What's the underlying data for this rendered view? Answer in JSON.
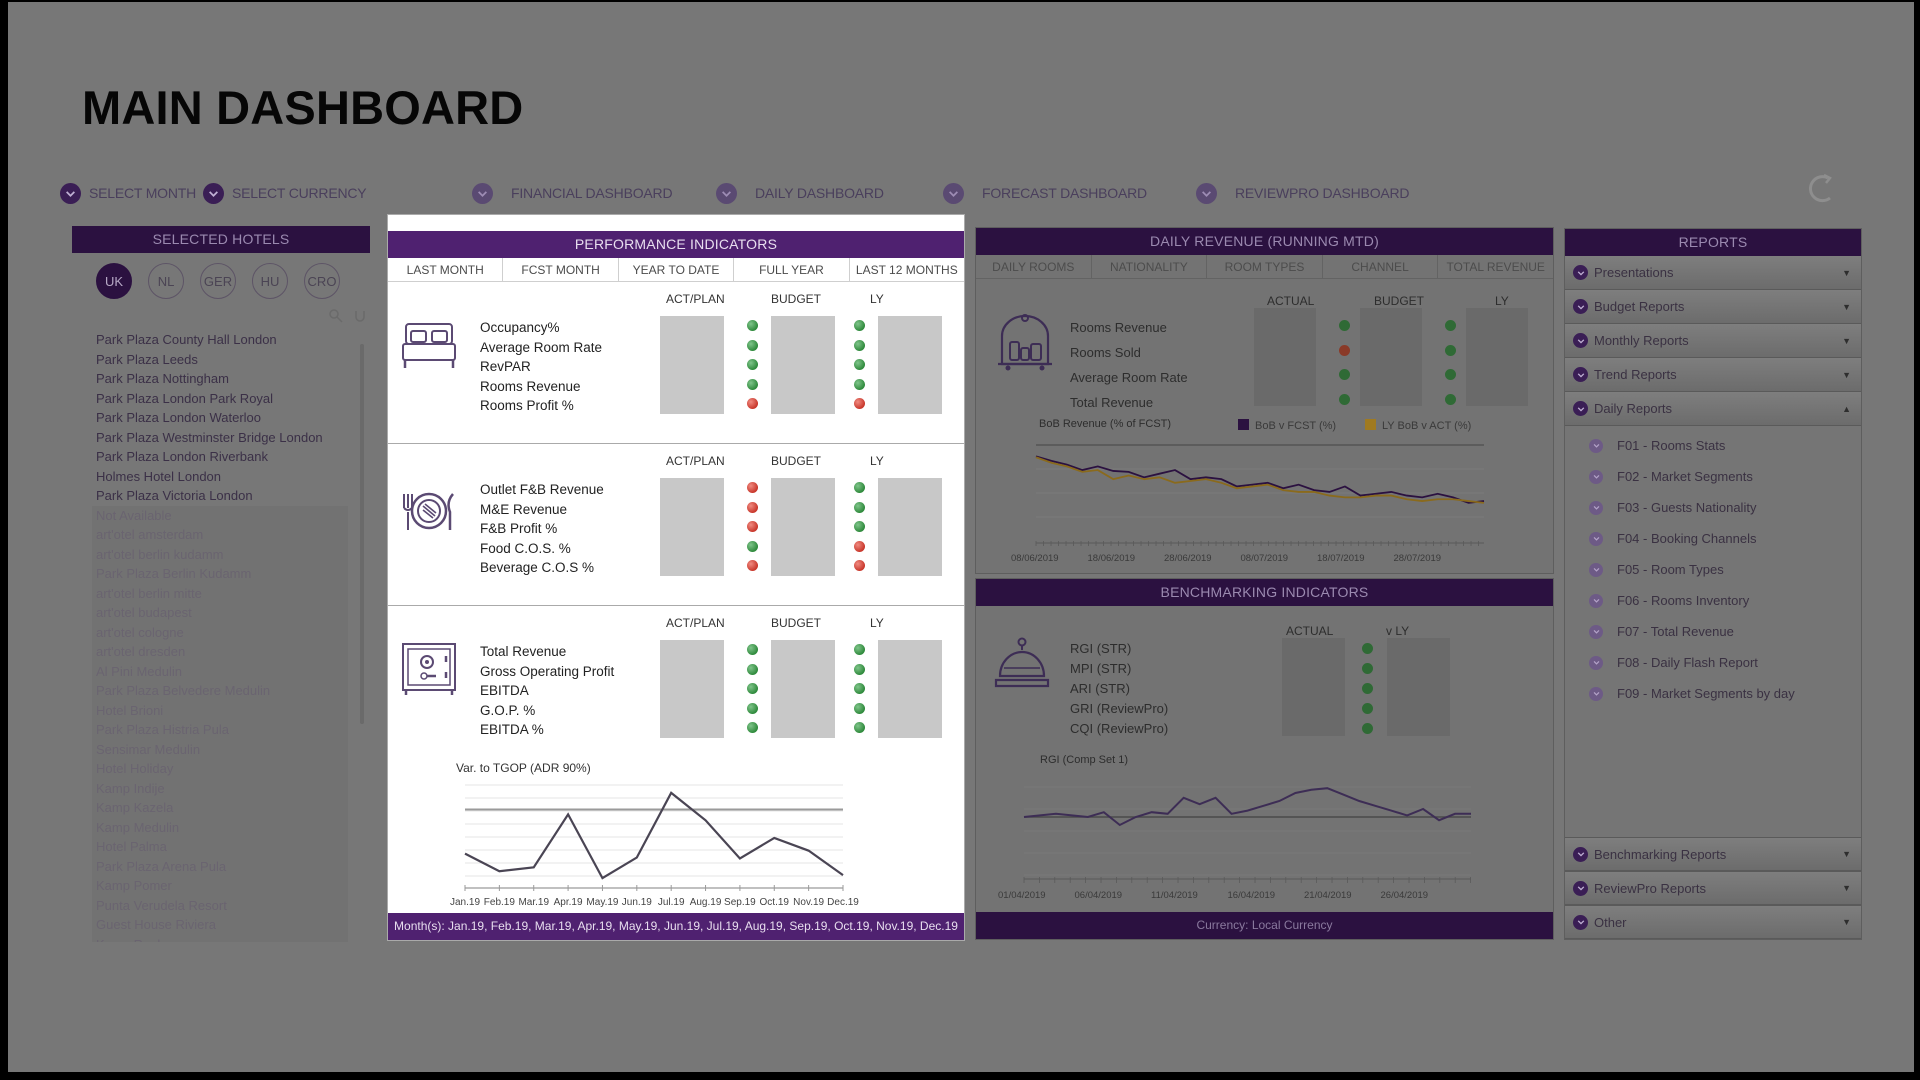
{
  "page": {
    "title": "MAIN DASHBOARD"
  },
  "topnav": {
    "select_month": "SELECT MONTH",
    "select_currency": "SELECT CURRENCY",
    "financial": "FINANCIAL DASHBOARD",
    "daily": "DAILY DASHBOARD",
    "forecast": "FORECAST DASHBOARD",
    "reviewpro": "REVIEWPRO DASHBOARD"
  },
  "hotels": {
    "header": "SELECTED HOTELS",
    "countries": [
      "UK",
      "NL",
      "GER",
      "HU",
      "CRO"
    ],
    "active_country": "UK",
    "available": [
      "Park Plaza County Hall London",
      "Park Plaza Leeds",
      "Park Plaza Nottingham",
      "Park Plaza London Park Royal",
      "Park Plaza London Waterloo",
      "Park Plaza Westminster Bridge London",
      "Park Plaza London Riverbank",
      "Holmes Hotel London",
      "Park Plaza Victoria London"
    ],
    "unavailable": [
      "Not Available",
      "art'otel amsterdam",
      "art'otel berlin kudamm",
      "Park Plaza Berlin Kudamm",
      "art'otel berlin mitte",
      "art'otel budapest",
      "art'otel cologne",
      "art'otel dresden",
      "Al Pini Medulin",
      "Park Plaza Belvedere Medulin",
      "Hotel Brioni",
      "Park Plaza Histria Pula",
      "Sensimar Medulin",
      "Hotel Holiday",
      "Kamp Indije",
      "Kamp Kazela",
      "Kamp Medulin",
      "Hotel Palma",
      "Park Plaza Arena Pula",
      "Kamp Pomer",
      "Punta Verudela Resort",
      "Guest House Riviera",
      "Kamp Runke"
    ]
  },
  "performance": {
    "header": "PERFORMANCE INDICATORS",
    "tabs": [
      "LAST MONTH",
      "FCST MONTH",
      "YEAR TO DATE",
      "FULL YEAR",
      "LAST 12 MONTHS"
    ],
    "columns": [
      "ACT/PLAN",
      "BUDGET",
      "LY"
    ],
    "sections": [
      {
        "icon": "bed-icon",
        "labels": [
          "Occupancy%",
          "Average Room Rate",
          "RevPAR",
          "Rooms Revenue",
          "Rooms Profit %"
        ],
        "budget_status": [
          "green",
          "green",
          "green",
          "green",
          "red"
        ],
        "ly_status": [
          "green",
          "green",
          "green",
          "green",
          "red"
        ]
      },
      {
        "icon": "dining-plate-icon",
        "labels": [
          "Outlet F&B Revenue",
          "M&E Revenue",
          "F&B Profit %",
          "Food C.O.S. %",
          "Beverage C.O.S %"
        ],
        "budget_status": [
          "red",
          "red",
          "red",
          "green",
          "red"
        ],
        "ly_status": [
          "green",
          "green",
          "green",
          "red",
          "red"
        ]
      },
      {
        "icon": "safe-icon",
        "labels": [
          "Total Revenue",
          "Gross Operating Profit",
          "EBITDA",
          "G.O.P. %",
          "EBITDA %"
        ],
        "budget_status": [
          "green",
          "green",
          "green",
          "green",
          "green"
        ],
        "ly_status": [
          "green",
          "green",
          "green",
          "green",
          "green"
        ]
      }
    ],
    "chart_title": "Var. to TGOP (ADR 90%)",
    "footer": "Month(s): Jan.19, Feb.19, Mar.19, Apr.19, May.19, Jun.19, Jul.19, Aug.19, Sep.19, Oct.19, Nov.19, Dec.19"
  },
  "daily_revenue": {
    "header": "DAILY REVENUE (RUNNING MTD)",
    "tabs": [
      "DAILY ROOMS",
      "NATIONALITY",
      "ROOM TYPES",
      "CHANNEL",
      "TOTAL REVENUE"
    ],
    "columns": [
      "ACTUAL",
      "BUDGET",
      "LY"
    ],
    "labels": [
      "Rooms Revenue",
      "Rooms Sold",
      "Average Room Rate",
      "Total Revenue"
    ],
    "budget_status": [
      "green",
      "red",
      "green",
      "green"
    ],
    "ly_status": [
      "green",
      "green",
      "green",
      "green"
    ],
    "chart_title": "BoB Revenue (% of FCST)",
    "legend": [
      {
        "label": "BoB v FCST (%)",
        "color": "#2b1140"
      },
      {
        "label": "LY BoB v ACT (%)",
        "color": "#b8860b"
      }
    ],
    "x_ticks": [
      "08/06/2019",
      "18/06/2019",
      "28/06/2019",
      "08/07/2019",
      "18/07/2019",
      "28/07/2019"
    ]
  },
  "benchmarking": {
    "header": "BENCHMARKING INDICATORS",
    "columns": [
      "ACTUAL",
      "v LY"
    ],
    "labels": [
      "RGI (STR)",
      "MPI (STR)",
      "ARI (STR)",
      "GRI (ReviewPro)",
      "CQI (ReviewPro)"
    ],
    "status": [
      "green",
      "green",
      "green",
      "green",
      "green"
    ],
    "chart_title": "RGI (Comp Set 1)",
    "x_ticks": [
      "01/04/2019",
      "06/04/2019",
      "11/04/2019",
      "16/04/2019",
      "21/04/2019",
      "26/04/2019"
    ],
    "footer": "Currency: Local Currency"
  },
  "reports": {
    "header": "REPORTS",
    "groups": [
      "Presentations",
      "Budget Reports",
      "Monthly Reports",
      "Trend Reports",
      "Daily Reports"
    ],
    "expanded_group": "Daily Reports",
    "daily_items": [
      "F01 - Rooms Stats",
      "F02 - Market Segments",
      "F03 - Guests Nationality",
      "F04 - Booking Channels",
      "F05 - Room Types",
      "F06 - Rooms Inventory",
      "F07 - Total Revenue",
      "F08 - Daily Flash Report",
      "F09 - Market Segments by day"
    ],
    "bottom_groups": [
      "Benchmarking Reports",
      "ReviewPro Reports",
      "Other"
    ]
  },
  "chart_data": [
    {
      "type": "line",
      "title": "Var. to TGOP (ADR 90%)",
      "categories": [
        "Jan.19",
        "Feb.19",
        "Mar.19",
        "Apr.19",
        "May.19",
        "Jun.19",
        "Jul.19",
        "Aug.19",
        "Sep.19",
        "Oct.19",
        "Nov.19",
        "Dec.19"
      ],
      "series": [
        {
          "name": "Var. to TGOP",
          "values": [
            30,
            12,
            16,
            70,
            5,
            26,
            92,
            64,
            25,
            46,
            33,
            8
          ]
        }
      ],
      "reference_line": 75,
      "ylim": [
        0,
        100
      ],
      "xlabel": "",
      "ylabel": "",
      "grid": true
    },
    {
      "type": "line",
      "title": "BoB Revenue (% of FCST)",
      "x_ticks": [
        "08/06/2019",
        "18/06/2019",
        "28/06/2019",
        "08/07/2019",
        "18/07/2019",
        "28/07/2019"
      ],
      "series": [
        {
          "name": "BoB v FCST (%)",
          "values": [
            95,
            90,
            86,
            80,
            84,
            79,
            78,
            72,
            76,
            80,
            70,
            72,
            70,
            62,
            64,
            66,
            60,
            64,
            58,
            56,
            62,
            52,
            54,
            56,
            52,
            50,
            54,
            50,
            44,
            46
          ]
        },
        {
          "name": "LY BoB v ACT (%)",
          "values": [
            94,
            88,
            84,
            78,
            80,
            70,
            74,
            70,
            72,
            66,
            68,
            70,
            66,
            60,
            62,
            64,
            58,
            56,
            56,
            52,
            50,
            50,
            52,
            52,
            48,
            46,
            48,
            48,
            46,
            44
          ]
        }
      ],
      "ylim": [
        0,
        100
      ],
      "grid": true
    },
    {
      "type": "line",
      "title": "RGI (Comp Set 1)",
      "x_ticks": [
        "01/04/2019",
        "06/04/2019",
        "11/04/2019",
        "16/04/2019",
        "21/04/2019",
        "26/04/2019"
      ],
      "series": [
        {
          "name": "RGI",
          "values": [
            50,
            51,
            52,
            51,
            50,
            53,
            45,
            50,
            53,
            52,
            62,
            58,
            62,
            52,
            54,
            57,
            60,
            65,
            67,
            68,
            64,
            60,
            57,
            54,
            51,
            55,
            48,
            52,
            52
          ]
        }
      ],
      "reference_line": 50,
      "grid": true
    }
  ]
}
